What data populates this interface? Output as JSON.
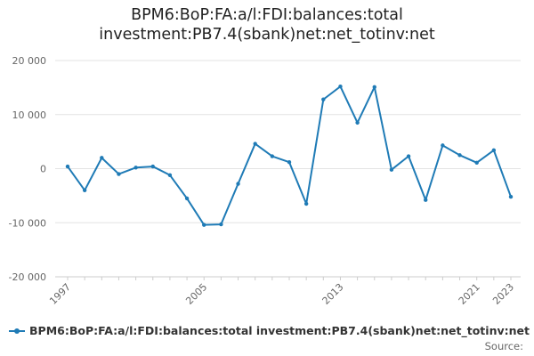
{
  "chart_data": {
    "type": "line",
    "title": "BPM6:BoP:FA:a/l:FDI:balances:total investment:PB7.4(sbank)net:net_totinv:net",
    "title_lines": [
      "BPM6:BoP:FA:a/l:FDI:balances:total",
      "investment:PB7.4(sbank)net:net_totinv:net"
    ],
    "x": [
      1997,
      1998,
      1999,
      2000,
      2001,
      2002,
      2003,
      2004,
      2005,
      2006,
      2007,
      2008,
      2009,
      2010,
      2011,
      2012,
      2013,
      2014,
      2015,
      2016,
      2017,
      2018,
      2019,
      2020,
      2021,
      2022,
      2023
    ],
    "series": [
      {
        "name": "BPM6:BoP:FA:a/l:FDI:balances:total investment:PB7.4(sbank)net:net_totinv:net",
        "color": "#1f7bb6",
        "values": [
          400,
          -4000,
          2000,
          -1000,
          200,
          400,
          -1200,
          -5500,
          -10400,
          -10300,
          -2800,
          4600,
          2300,
          1200,
          -6500,
          12800,
          15200,
          8500,
          15100,
          -200,
          2300,
          -5800,
          4300,
          2500,
          1100,
          3400,
          -5200
        ]
      }
    ],
    "ylim": [
      -20000,
      20000
    ],
    "yticks": [
      20000,
      10000,
      0,
      -10000,
      -20000
    ],
    "ytick_labels": [
      "20 000",
      "10 000",
      "0",
      "-10 000",
      "-20 000"
    ],
    "xticks": [
      1997,
      2005,
      2013,
      2021,
      2023
    ],
    "xtick_labels": [
      "1997",
      "2005",
      "2013",
      "2021",
      "2023"
    ],
    "grid": true,
    "legend_position": "bottom-left",
    "source_label": "Source:"
  }
}
